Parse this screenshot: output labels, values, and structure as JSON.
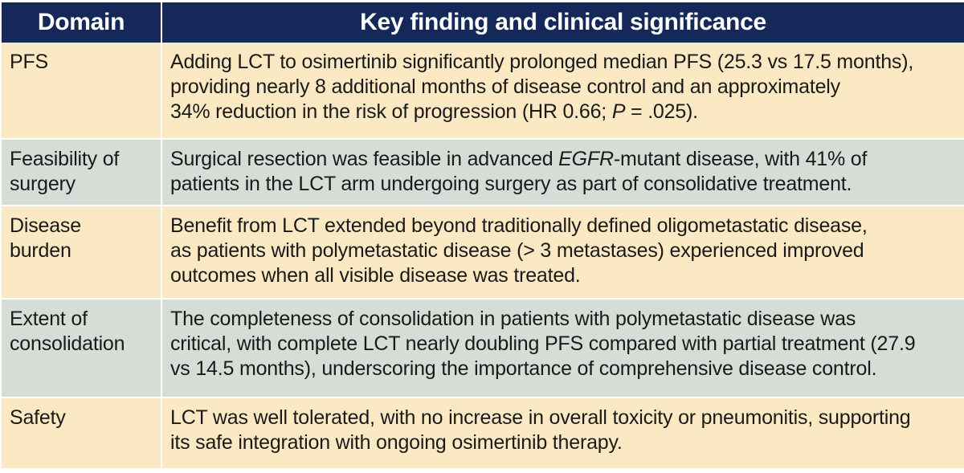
{
  "headers": {
    "domain": "Domain",
    "finding": "Key finding and clinical significance"
  },
  "rows": [
    {
      "domain": "PFS",
      "finding": {
        "line1": "Adding LCT to osimertinib significantly prolonged median PFS (25.3 vs 17.5 months),",
        "line2": "providing nearly 8 additional months of disease control and an approximately",
        "line3_a": "34% reduction in the risk of progression (HR 0.66; ",
        "line3_p": "P",
        "line3_b": " = .025)."
      }
    },
    {
      "domain_line1": "Feasibility of",
      "domain_line2": "surgery",
      "finding": {
        "line1_a": "Surgical resection was feasible in advanced ",
        "line1_egfr": "EGFR",
        "line1_b": "-mutant disease, with 41% of",
        "line2": "patients in the LCT arm undergoing surgery as part of consolidative treatment."
      }
    },
    {
      "domain_line1": "Disease",
      "domain_line2": "burden",
      "finding": {
        "line1": "Benefit from LCT extended beyond traditionally defined oligometastatic disease,",
        "line2": "as patients with polymetastatic disease (> 3 metastases) experienced improved",
        "line3": "outcomes when all visible disease was treated."
      }
    },
    {
      "domain_line1": "Extent of",
      "domain_line2": "consolidation",
      "finding": {
        "line1": "The completeness of consolidation in patients with polymetastatic disease was",
        "line2": "critical, with complete LCT nearly doubling PFS compared with partial treatment (27.9",
        "line3": "vs 14.5 months), underscoring the importance of comprehensive disease control."
      }
    },
    {
      "domain": "Safety",
      "finding": {
        "line1": "LCT was well tolerated, with no increase in overall toxicity or pneumonitis, supporting",
        "line2": "its safe integration with ongoing osimertinib therapy."
      }
    }
  ],
  "colors": {
    "header_bg": "#14285a",
    "row_cream": "#fbe9c3",
    "row_sage": "#d5ddd6"
  }
}
